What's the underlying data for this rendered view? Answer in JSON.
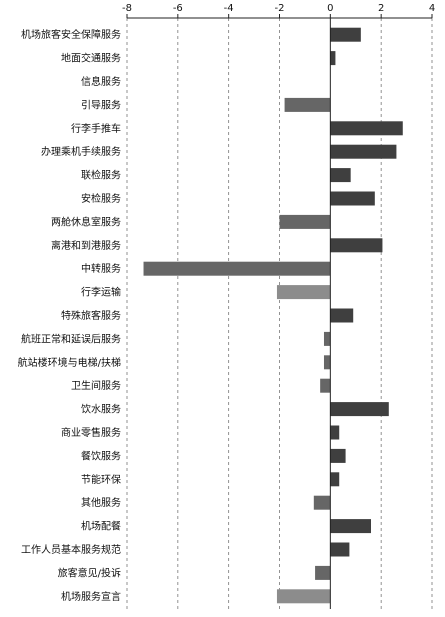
{
  "chart_data": {
    "type": "bar",
    "orientation": "horizontal",
    "title": "",
    "xlabel": "",
    "ylabel": "",
    "xlim": [
      -8,
      4
    ],
    "xticks": [
      -8,
      -6,
      -4,
      -2,
      0,
      2,
      4
    ],
    "grid": "vertical-dashed",
    "legend": "none",
    "colors": {
      "positive": "#3f3f3f",
      "negative": "#666666",
      "highlight_negative": "#8c8c8c",
      "grid": "#777777",
      "axis": "#222222"
    },
    "categories": [
      "机场旅客安全保障服务",
      "地面交通服务",
      "信息服务",
      "引导服务",
      "行李手推车",
      "办理乘机手续服务",
      "联检服务",
      "安检服务",
      "两舱休息室服务",
      "离港和到港服务",
      "中转服务",
      "行李运输",
      "特殊旅客服务",
      "航班正常和延误后服务",
      "航站楼环境与电梯/扶梯",
      "卫生间服务",
      "饮水服务",
      "商业零售服务",
      "餐饮服务",
      "节能环保",
      "其他服务",
      "机场配餐",
      "工作人员基本服务规范",
      "旅客意见/投诉",
      "机场服务宣言"
    ],
    "values": [
      1.2,
      0.2,
      0.0,
      -1.8,
      2.85,
      2.6,
      0.8,
      1.75,
      -2.0,
      2.05,
      -7.35,
      -2.1,
      0.9,
      -0.25,
      -0.25,
      -0.4,
      2.3,
      0.35,
      0.6,
      0.35,
      -0.65,
      1.6,
      0.75,
      -0.6,
      -2.1
    ]
  }
}
